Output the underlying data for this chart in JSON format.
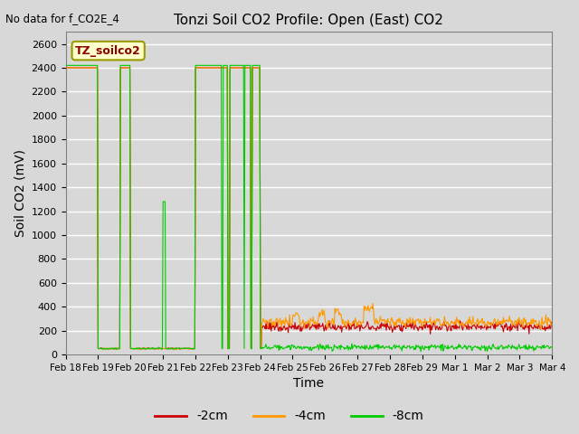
{
  "title": "Tonzi Soil CO2 Profile: Open (East) CO2",
  "top_left_text": "No data for f_CO2E_4",
  "xlabel": "Time",
  "ylabel": "Soil CO2 (mV)",
  "ylim": [
    0,
    2700
  ],
  "yticks": [
    0,
    200,
    400,
    600,
    800,
    1000,
    1200,
    1400,
    1600,
    1800,
    2000,
    2200,
    2400,
    2600
  ],
  "legend_label": "TZ_soilco2",
  "line_colors": {
    "2cm": "#cc0000",
    "4cm": "#ff9900",
    "8cm": "#00cc00"
  },
  "line_labels": [
    "-2cm",
    "-4cm",
    "-8cm"
  ],
  "background_color": "#d8d8d8",
  "axes_bg_color": "#d8d8d8",
  "grid_color": "#ffffff",
  "xtick_labels": [
    "Feb 18",
    "Feb 19",
    "Feb 20",
    "Feb 21",
    "Feb 22",
    "Feb 23",
    "Feb 24",
    "Feb 25",
    "Feb 26",
    "Feb 27",
    "Feb 28",
    "Feb 29",
    "Mar 1",
    "Mar 2",
    "Mar 3",
    "Mar 4"
  ],
  "xlim": [
    0,
    15
  ]
}
